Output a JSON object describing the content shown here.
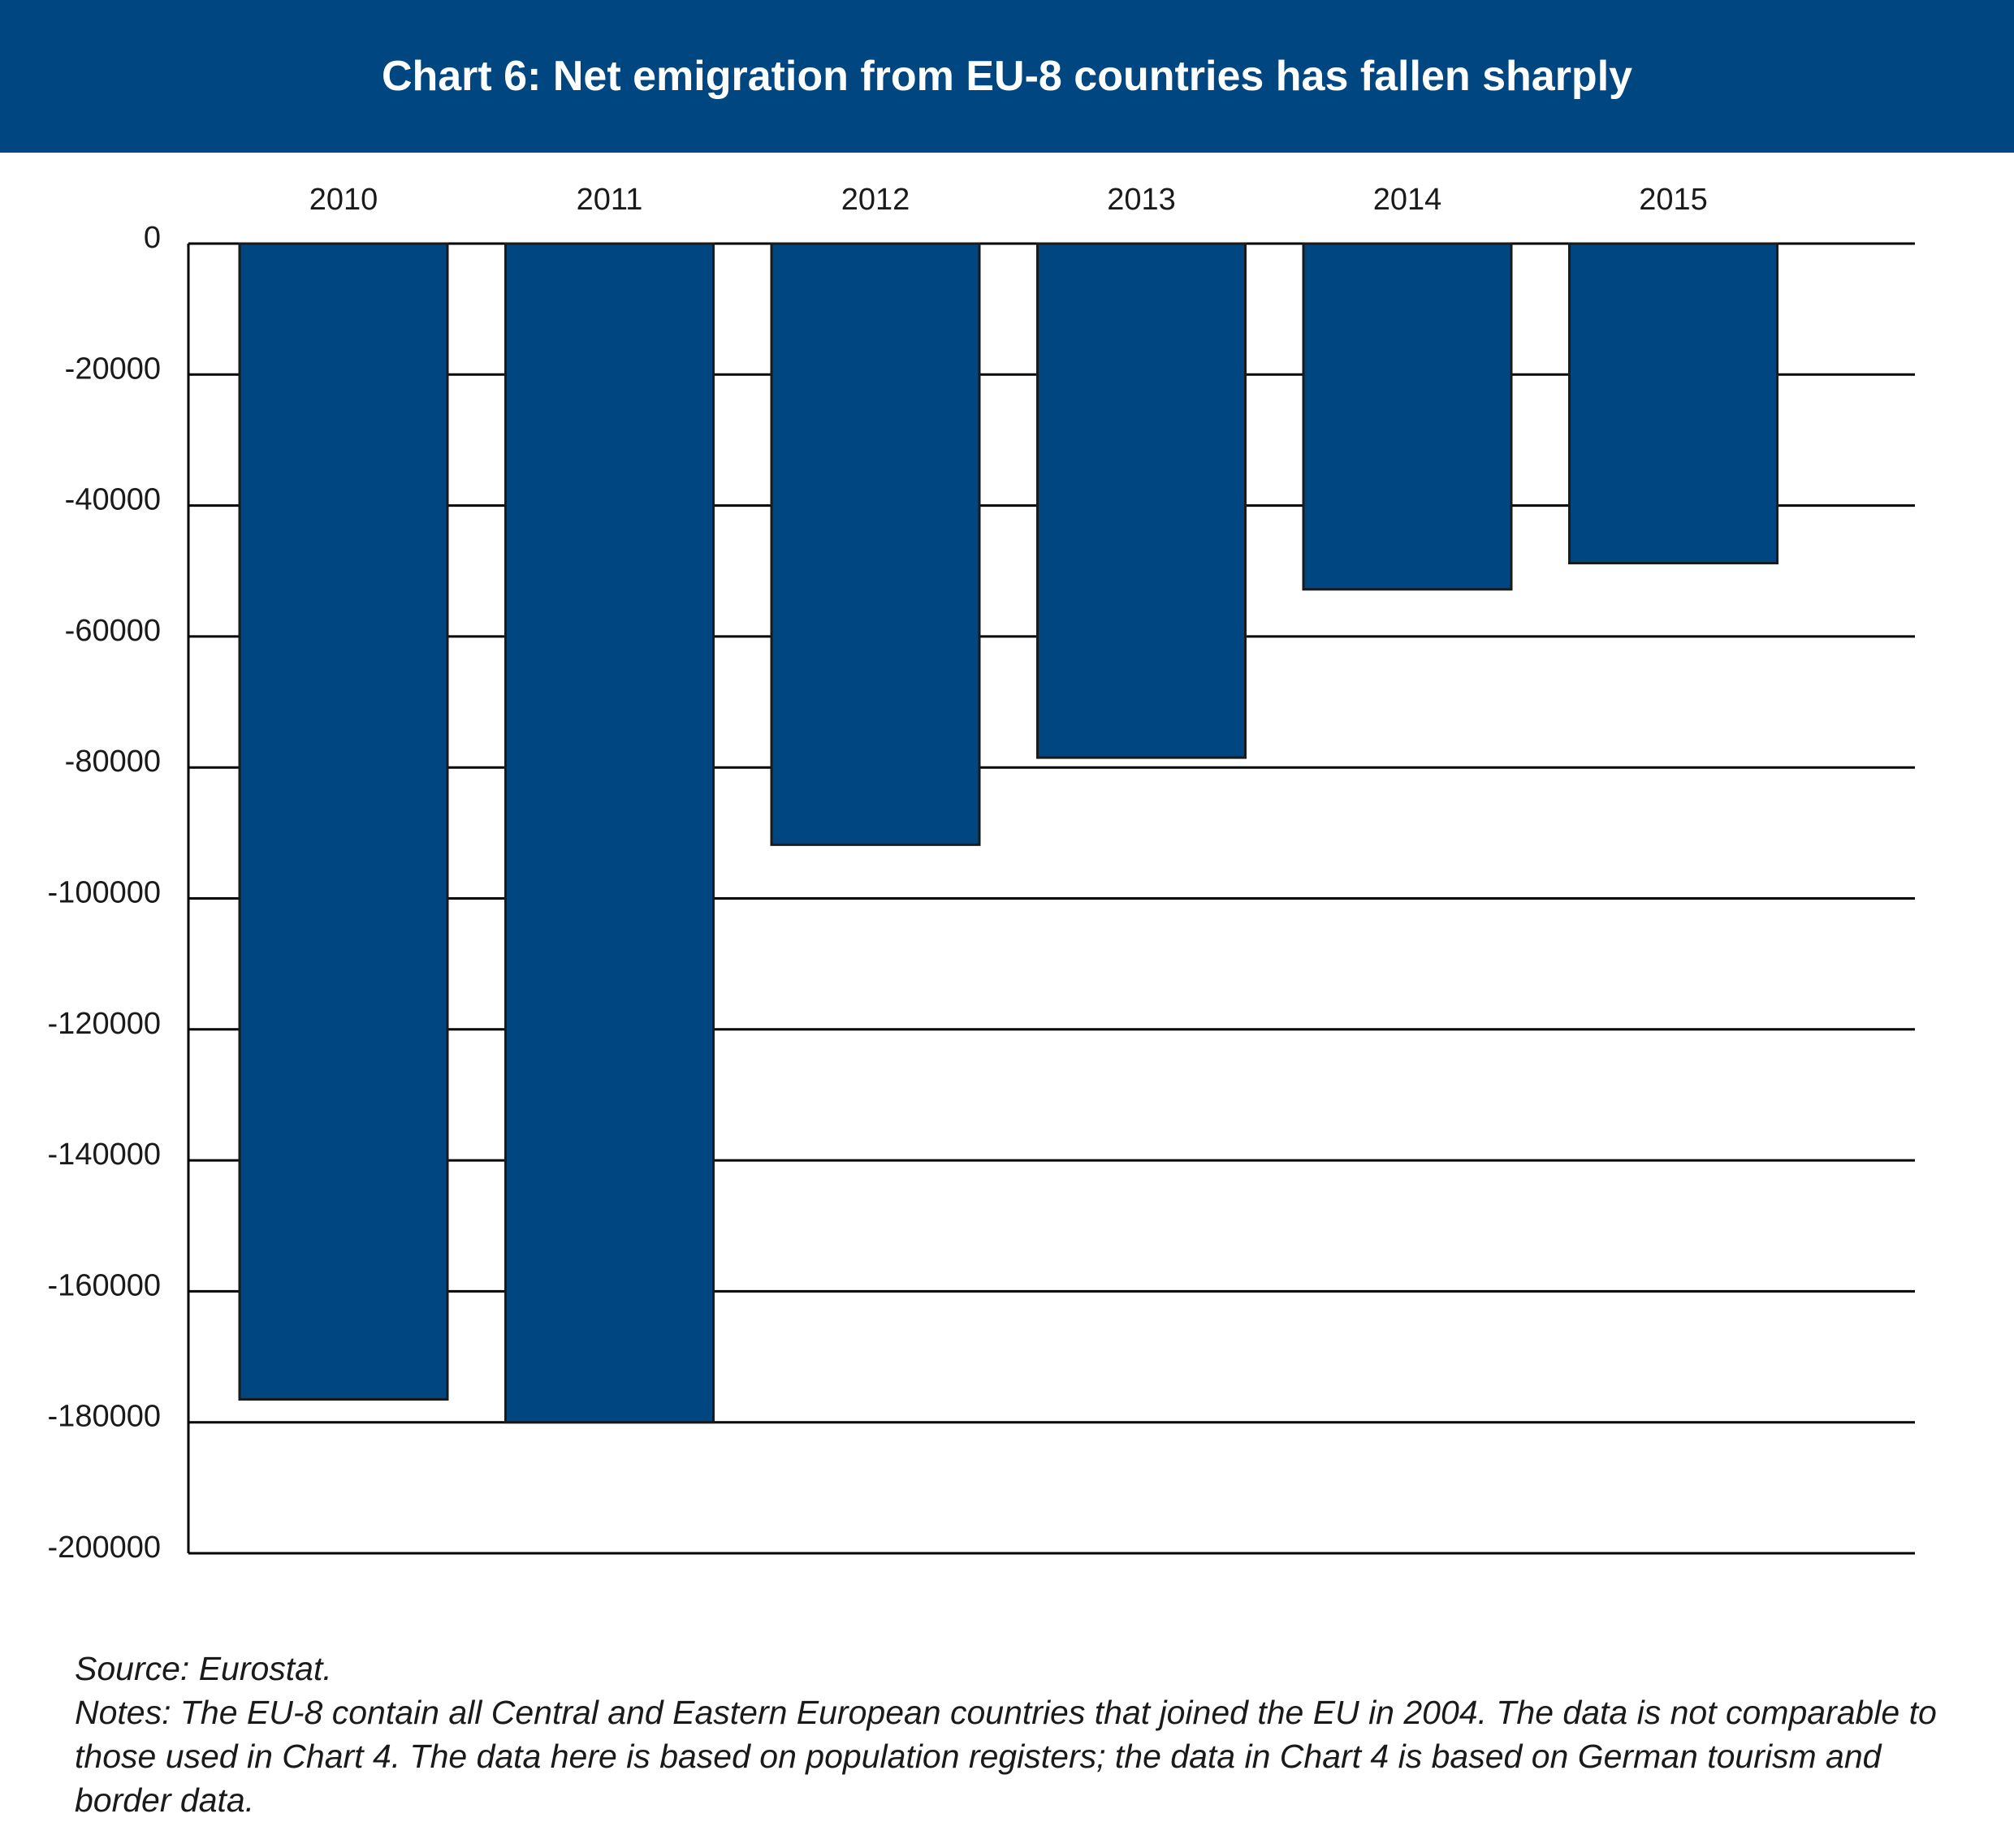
{
  "chart_data": {
    "type": "bar",
    "title": "Chart 6: Net emigration from EU-8 countries has fallen sharply",
    "categories": [
      "2010",
      "2011",
      "2012",
      "2013",
      "2014",
      "2015"
    ],
    "values": [
      -176500,
      -180000,
      -91800,
      -78500,
      -52800,
      -48800
    ],
    "ylim": [
      -200000,
      0
    ],
    "yticks": [
      0,
      -20000,
      -40000,
      -60000,
      -80000,
      -100000,
      -120000,
      -140000,
      -160000,
      -180000,
      -200000
    ],
    "ytick_labels": [
      "0",
      "-20000",
      "-40000",
      "-60000",
      "-80000",
      "-100000",
      "-120000",
      "-140000",
      "-160000",
      "-180000",
      "-200000"
    ],
    "category_axis": "top",
    "grid": true,
    "legend": false,
    "colors": {
      "bar": "#004680",
      "header": "#004680",
      "grid": "#000000"
    }
  },
  "footer": {
    "source": "Source: Eurostat.",
    "notes": "Notes: The EU-8 contain all Central and Eastern European countries that joined the EU in 2004. The data is not comparable to those used in Chart 4. The data here is based on population registers; the data in Chart 4 is based on German tourism and border data."
  }
}
